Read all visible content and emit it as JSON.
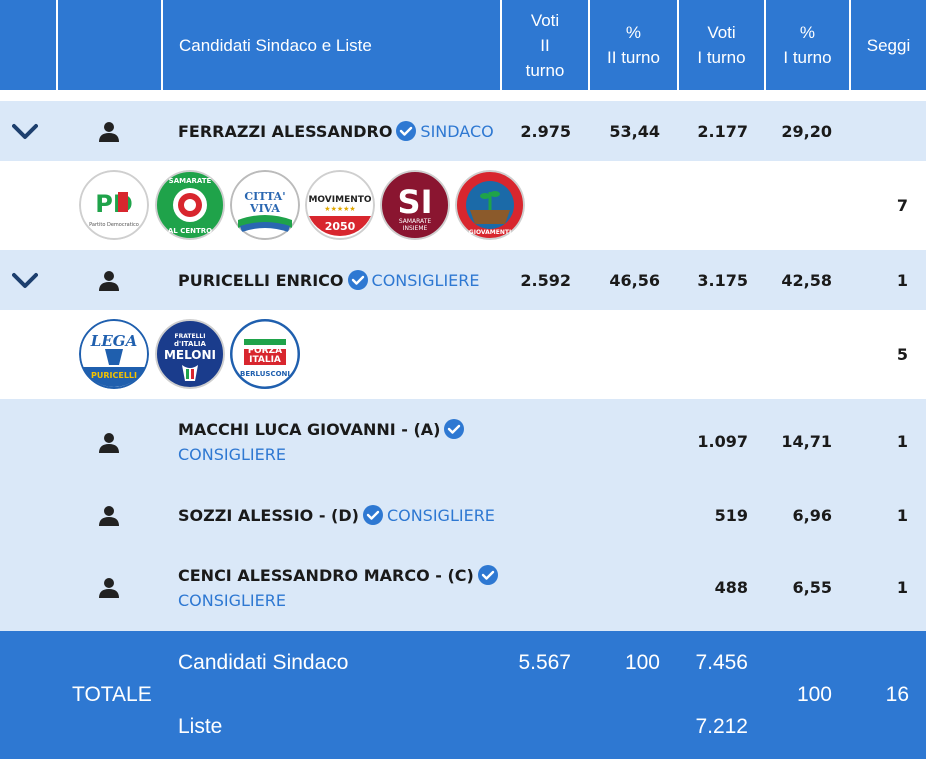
{
  "header": {
    "candidates": "Candidati Sindaco e Liste",
    "votes_round2": "Voti\nII\nturno",
    "pct_round2": "%\nII turno",
    "votes_round1": "Voti\nI turno",
    "pct_round1": "%\nI turno",
    "seats": "Seggi"
  },
  "candidates": [
    {
      "name": "FERRAZZI ALESSANDRO",
      "role": "SINDACO",
      "votes_round2": "2.975",
      "pct_round2": "53,44",
      "votes_round1": "2.177",
      "pct_round1": "29,20",
      "seats": "",
      "list_seats": "7",
      "logos": [
        {
          "icon": "pd-logo",
          "text": "PD",
          "subtext": "Partito Democratico",
          "color": "#d8262e"
        },
        {
          "icon": "samarate-al-centro-logo",
          "text": "SAMARATE AL CENTRO",
          "color": "#1fa34a"
        },
        {
          "icon": "citta-viva-logo",
          "text": "CITTA' VIVA",
          "color": "#2a67b1"
        },
        {
          "icon": "movimento-2050-logo",
          "text": "MOVIMENTO 2050",
          "color": "#d8262e"
        },
        {
          "icon": "si-samarate-insieme-logo",
          "text": "SI",
          "subtext": "SAMARATE INSIEME",
          "color": "#8a1530"
        },
        {
          "icon": "giovamenti-logo",
          "text": "GIOVAMENTI",
          "color": "#d8262e"
        }
      ]
    },
    {
      "name": "PURICELLI ENRICO",
      "role": "CONSIGLIERE",
      "votes_round2": "2.592",
      "pct_round2": "46,56",
      "votes_round1": "3.175",
      "pct_round1": "42,58",
      "seats": "1",
      "list_seats": "5",
      "logos": [
        {
          "icon": "lega-logo",
          "text": "LEGA",
          "subtext": "PURICELLI",
          "color": "#1f5fae"
        },
        {
          "icon": "fratelli-italia-logo",
          "text": "MELONI",
          "subtext": "FRATELLI d'ITALIA",
          "color": "#1a3c8c"
        },
        {
          "icon": "forza-italia-logo",
          "text": "FORZA ITALIA",
          "subtext": "BERLUSCONI",
          "color": "#1f5fae"
        }
      ]
    }
  ],
  "other_candidates": [
    {
      "name": "MACCHI LUCA GIOVANNI - (A)",
      "role": "CONSIGLIERE",
      "votes_round1": "1.097",
      "pct_round1": "14,71",
      "seats": "1"
    },
    {
      "name": "SOZZI ALESSIO - (D)",
      "role": "CONSIGLIERE",
      "votes_round1": "519",
      "pct_round1": "6,96",
      "seats": "1"
    },
    {
      "name": "CENCI ALESSANDRO MARCO - (C)",
      "role": "CONSIGLIERE",
      "votes_round1": "488",
      "pct_round1": "6,55",
      "seats": "1"
    }
  ],
  "totals": {
    "label": "TOTALE",
    "mayor_label": "Candidati Sindaco",
    "lists_label": "Liste",
    "mayor_votes_round2": "5.567",
    "mayor_pct_round2": "100",
    "mayor_votes_round1": "7.456",
    "lists_votes_round1": "7.212",
    "pct_round1": "100",
    "seats": "16"
  },
  "colors": {
    "primary": "#2e78d2",
    "light_row": "#dae8f8"
  }
}
